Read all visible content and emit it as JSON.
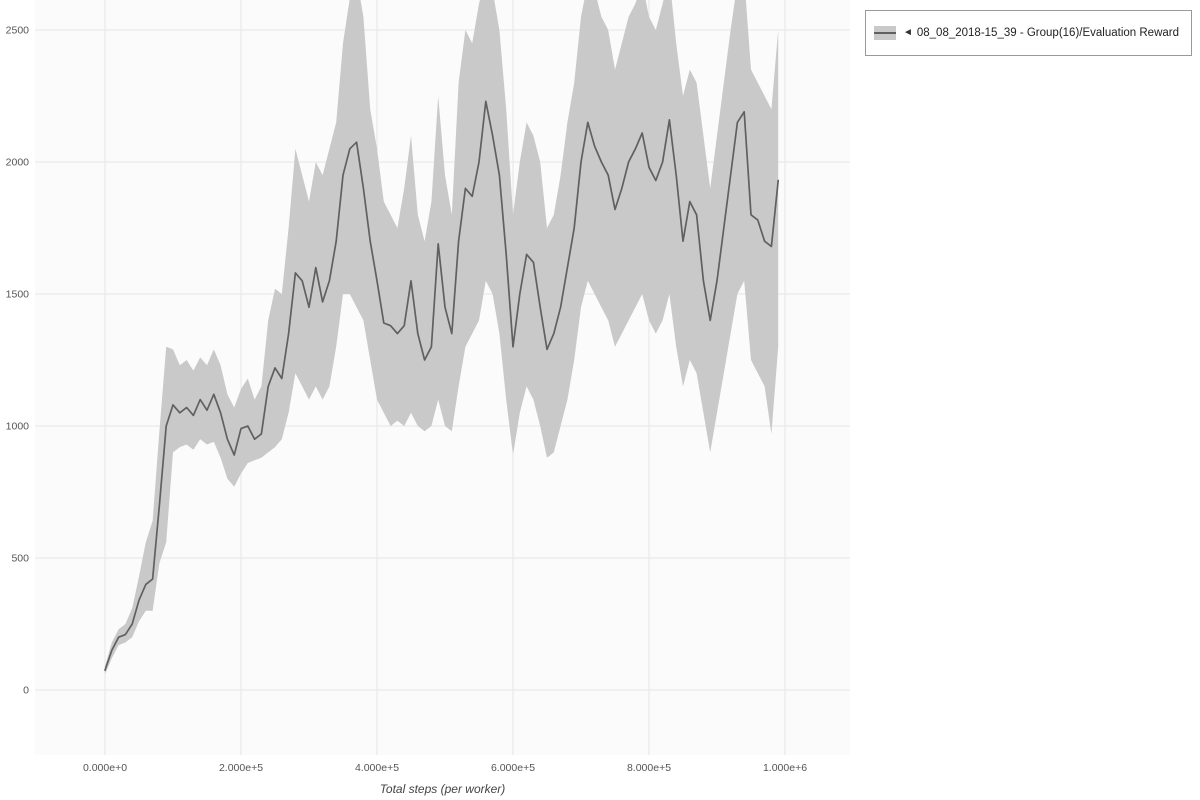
{
  "legend": {
    "collapse_icon": "◄",
    "label": "08_08_2018-15_39 - Group(16)/Evaluation Reward"
  },
  "chart_data": {
    "type": "line",
    "title": "",
    "xlabel": "Total steps (per worker)",
    "ylabel": "",
    "x_domain": [
      0,
      1000000
    ],
    "y_domain": [
      0,
      2500
    ],
    "grid": true,
    "legend_position": "top-right",
    "x_ticks": {
      "values": [
        0,
        200000,
        400000,
        600000,
        800000,
        1000000
      ],
      "labels": [
        "0.000e+0",
        "2.000e+5",
        "4.000e+5",
        "6.000e+5",
        "8.000e+5",
        "1.000e+6"
      ]
    },
    "y_ticks": {
      "values": [
        0,
        500,
        1000,
        1500,
        2000,
        2500
      ],
      "labels": [
        "0",
        "500",
        "1000",
        "1500",
        "2000",
        "2500"
      ]
    },
    "colors": {
      "line": "#606060",
      "band": "#c9c9c9",
      "grid": "#e6e6e6",
      "plot_bg": "#fbfbfb",
      "tick": "#555555"
    },
    "x": [
      0,
      10000,
      20000,
      30000,
      40000,
      50000,
      60000,
      70000,
      80000,
      90000,
      100000,
      110000,
      120000,
      130000,
      140000,
      150000,
      160000,
      170000,
      180000,
      190000,
      200000,
      210000,
      220000,
      230000,
      240000,
      250000,
      260000,
      270000,
      280000,
      290000,
      300000,
      310000,
      320000,
      330000,
      340000,
      350000,
      360000,
      370000,
      380000,
      390000,
      400000,
      410000,
      420000,
      430000,
      440000,
      450000,
      460000,
      470000,
      480000,
      490000,
      500000,
      510000,
      520000,
      530000,
      540000,
      550000,
      560000,
      570000,
      580000,
      590000,
      600000,
      610000,
      620000,
      630000,
      640000,
      650000,
      660000,
      670000,
      680000,
      690000,
      700000,
      710000,
      720000,
      730000,
      740000,
      750000,
      760000,
      770000,
      780000,
      790000,
      800000,
      810000,
      820000,
      830000,
      840000,
      850000,
      860000,
      870000,
      880000,
      890000,
      900000,
      910000,
      920000,
      930000,
      940000,
      950000,
      960000,
      970000,
      980000,
      990000
    ],
    "series": [
      {
        "name": "08_08_2018-15_39 - Group(16)/Evaluation Reward",
        "values": [
          75,
          150,
          200,
          210,
          250,
          340,
          400,
          420,
          700,
          1000,
          1080,
          1050,
          1070,
          1040,
          1100,
          1060,
          1120,
          1050,
          950,
          890,
          990,
          1000,
          950,
          970,
          1150,
          1220,
          1180,
          1350,
          1580,
          1550,
          1450,
          1600,
          1470,
          1550,
          1700,
          1950,
          2050,
          2075,
          1900,
          1700,
          1550,
          1390,
          1380,
          1350,
          1380,
          1550,
          1350,
          1250,
          1300,
          1690,
          1450,
          1350,
          1700,
          1900,
          1870,
          2000,
          2230,
          2100,
          1950,
          1650,
          1300,
          1500,
          1650,
          1620,
          1450,
          1290,
          1350,
          1450,
          1600,
          1750,
          2000,
          2150,
          2060,
          2000,
          1950,
          1820,
          1900,
          2000,
          2050,
          2110,
          1980,
          1930,
          2000,
          2160,
          1950,
          1700,
          1850,
          1800,
          1550,
          1400,
          1550,
          1750,
          1950,
          2150,
          2190,
          1800,
          1780,
          1700,
          1680,
          1930
        ],
        "lower": [
          60,
          120,
          170,
          180,
          200,
          260,
          300,
          300,
          480,
          560,
          900,
          920,
          930,
          910,
          950,
          930,
          940,
          880,
          800,
          770,
          820,
          860,
          870,
          880,
          900,
          920,
          950,
          1050,
          1200,
          1150,
          1100,
          1150,
          1100,
          1150,
          1300,
          1500,
          1500,
          1450,
          1400,
          1250,
          1100,
          1050,
          1000,
          1020,
          1000,
          1050,
          1000,
          980,
          1000,
          1100,
          1000,
          980,
          1150,
          1300,
          1350,
          1400,
          1550,
          1500,
          1350,
          1100,
          890,
          1050,
          1150,
          1100,
          1000,
          880,
          900,
          1000,
          1100,
          1250,
          1450,
          1550,
          1500,
          1450,
          1400,
          1300,
          1350,
          1400,
          1450,
          1500,
          1400,
          1350,
          1400,
          1500,
          1300,
          1150,
          1250,
          1200,
          1050,
          900,
          1050,
          1200,
          1350,
          1500,
          1550,
          1250,
          1200,
          1150,
          970,
          1300
        ],
        "upper": [
          90,
          180,
          230,
          250,
          310,
          430,
          560,
          640,
          980,
          1300,
          1290,
          1230,
          1250,
          1210,
          1260,
          1230,
          1290,
          1230,
          1120,
          1070,
          1140,
          1180,
          1100,
          1150,
          1400,
          1520,
          1500,
          1750,
          2050,
          1950,
          1850,
          2000,
          1950,
          2050,
          2150,
          2450,
          2620,
          2700,
          2550,
          2200,
          2050,
          1850,
          1800,
          1750,
          1900,
          2100,
          1800,
          1700,
          1850,
          2250,
          1950,
          1800,
          2300,
          2500,
          2450,
          2600,
          2700,
          2650,
          2500,
          2200,
          1800,
          2000,
          2150,
          2100,
          2000,
          1750,
          1800,
          1950,
          2150,
          2300,
          2550,
          2680,
          2650,
          2550,
          2500,
          2350,
          2450,
          2550,
          2600,
          2680,
          2550,
          2500,
          2600,
          2700,
          2450,
          2250,
          2350,
          2300,
          2100,
          1900,
          2100,
          2300,
          2500,
          2680,
          2700,
          2350,
          2300,
          2250,
          2200,
          2500
        ]
      }
    ]
  }
}
